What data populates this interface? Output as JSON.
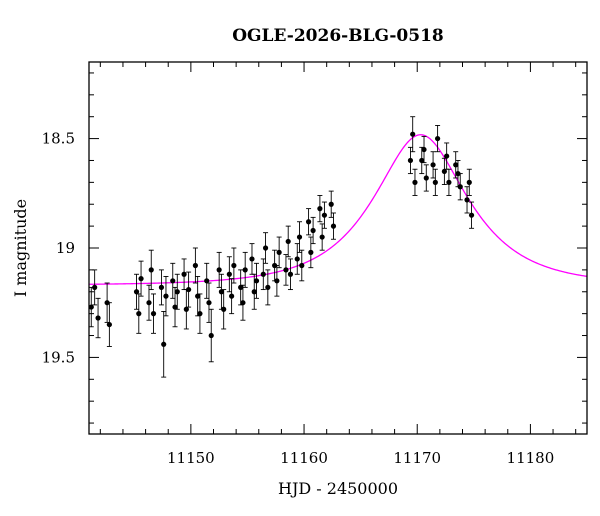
{
  "chart_data": {
    "type": "scatter",
    "title": "OGLE-2026-BLG-0518",
    "xlabel": "HJD - 2450000",
    "ylabel": "I magnitude",
    "xlim": [
      11141,
      11185
    ],
    "ylim": [
      19.85,
      18.15
    ],
    "y_inverted": true,
    "x_ticks": [
      11150,
      11160,
      11170,
      11180
    ],
    "x_tick_labels": [
      "11150",
      "11160",
      "11170",
      "11180"
    ],
    "y_ticks": [
      18.5,
      19,
      19.5
    ],
    "y_tick_labels": [
      "18.5",
      "19",
      "19.5"
    ],
    "grid": false,
    "colors": {
      "points": "#000000",
      "model": "#ff00ff",
      "axes": "#000000"
    },
    "series": [
      {
        "kind": "points_with_errorbars",
        "x": [
          11141.2,
          11141.5,
          11141.8,
          11142.6,
          11142.8,
          11145.2,
          11145.4,
          11145.6,
          11146.3,
          11146.5,
          11146.7,
          11147.4,
          11147.6,
          11147.8,
          11148.4,
          11148.6,
          11148.8,
          11149.4,
          11149.6,
          11149.8,
          11150.4,
          11150.6,
          11150.8,
          11151.4,
          11151.6,
          11151.8,
          11152.5,
          11152.7,
          11152.9,
          11153.4,
          11153.6,
          11153.8,
          11154.4,
          11154.6,
          11154.8,
          11155.4,
          11155.6,
          11155.8,
          11156.4,
          11156.6,
          11156.8,
          11157.4,
          11157.6,
          11157.8,
          11158.4,
          11158.6,
          11158.8,
          11159.4,
          11159.6,
          11159.8,
          11160.4,
          11160.6,
          11160.8,
          11161.4,
          11161.6,
          11161.8,
          11162.4,
          11162.6,
          11169.4,
          11169.6,
          11169.8,
          11170.4,
          11170.6,
          11170.8,
          11171.4,
          11171.6,
          11171.8,
          11172.4,
          11172.6,
          11172.8,
          11173.4,
          11173.6,
          11173.8,
          11174.4,
          11174.6,
          11174.8
        ],
        "y": [
          19.27,
          19.18,
          19.32,
          19.25,
          19.35,
          19.2,
          19.3,
          19.14,
          19.25,
          19.1,
          19.3,
          19.18,
          19.44,
          19.22,
          19.15,
          19.27,
          19.2,
          19.12,
          19.28,
          19.19,
          19.08,
          19.22,
          19.3,
          19.15,
          19.25,
          19.4,
          19.1,
          19.2,
          19.28,
          19.12,
          19.22,
          19.08,
          19.18,
          19.25,
          19.1,
          19.05,
          19.2,
          19.15,
          19.12,
          19.0,
          19.18,
          19.08,
          19.15,
          19.02,
          19.1,
          18.97,
          19.12,
          19.05,
          18.95,
          19.08,
          18.88,
          19.02,
          18.92,
          18.82,
          18.95,
          18.85,
          18.8,
          18.9,
          18.6,
          18.48,
          18.7,
          18.6,
          18.55,
          18.68,
          18.62,
          18.7,
          18.5,
          18.65,
          18.58,
          18.7,
          18.62,
          18.66,
          18.72,
          18.78,
          18.7,
          18.85
        ],
        "err": [
          0.09,
          0.08,
          0.09,
          0.09,
          0.1,
          0.08,
          0.09,
          0.08,
          0.08,
          0.09,
          0.09,
          0.08,
          0.15,
          0.09,
          0.08,
          0.09,
          0.08,
          0.07,
          0.09,
          0.08,
          0.08,
          0.09,
          0.09,
          0.08,
          0.09,
          0.12,
          0.08,
          0.08,
          0.09,
          0.08,
          0.08,
          0.08,
          0.08,
          0.08,
          0.08,
          0.07,
          0.08,
          0.08,
          0.07,
          0.07,
          0.08,
          0.07,
          0.07,
          0.07,
          0.07,
          0.07,
          0.07,
          0.07,
          0.07,
          0.07,
          0.06,
          0.07,
          0.06,
          0.06,
          0.06,
          0.06,
          0.06,
          0.06,
          0.06,
          0.08,
          0.06,
          0.06,
          0.06,
          0.06,
          0.06,
          0.06,
          0.06,
          0.06,
          0.06,
          0.06,
          0.06,
          0.06,
          0.06,
          0.06,
          0.06,
          0.06
        ]
      },
      {
        "kind": "model_curve",
        "baseline_mag": 19.17,
        "t0": 11170.3,
        "u0": 0.6,
        "tE": 6.5
      }
    ]
  }
}
